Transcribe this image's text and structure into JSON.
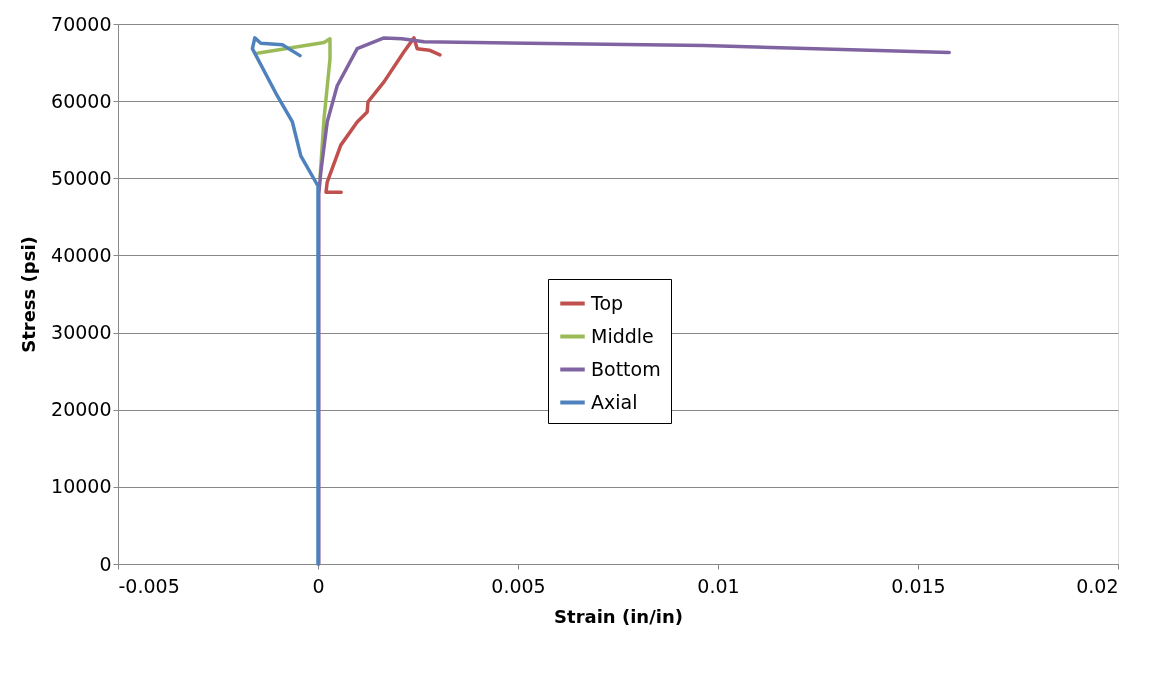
{
  "chart_data": {
    "type": "line",
    "xlabel": "Strain (in/in)",
    "ylabel": "Stress (psi)",
    "xlim": [
      -0.005,
      0.02
    ],
    "xticks": [
      -0.005,
      0,
      0.005,
      0.01,
      0.015,
      0.02
    ],
    "ylim": [
      0,
      70000
    ],
    "yticks": [
      0,
      10000,
      20000,
      30000,
      40000,
      50000,
      60000,
      70000
    ],
    "grid": "y",
    "legend": "center",
    "marker": "none",
    "line_style": "solid",
    "series": [
      {
        "name": "Top",
        "color": "#c0504d",
        "x": [
          0.00058,
          0.0002,
          0.00023,
          0.00057,
          0.00098,
          0.00123,
          0.00125,
          0.00165,
          0.00215,
          0.0024,
          0.00248,
          0.00278,
          0.00305
        ],
        "values": [
          48200,
          48200,
          49500,
          54300,
          57300,
          58600,
          59900,
          62500,
          66400,
          68200,
          66800,
          66600,
          66000
        ]
      },
      {
        "name": "Middle",
        "color": "#9bbb59",
        "x": [
          5e-05,
          0.00015,
          0.0003,
          0.0003,
          0.00015,
          -0.00152
        ],
        "values": [
          50000,
          57700,
          65500,
          68100,
          67600,
          66200
        ]
      },
      {
        "name": "Bottom",
        "color": "#8064a2",
        "x": [
          2e-05,
          2e-05,
          7e-05,
          0.00023,
          0.00048,
          0.00098,
          0.00165,
          0.0021,
          0.00265,
          0.00965,
          0.01578
        ],
        "values": [
          0,
          48000,
          50800,
          57300,
          62000,
          66800,
          68200,
          68100,
          67700,
          67200,
          66300
        ]
      },
      {
        "name": "Axial",
        "color": "#4f81bd",
        "x": [
          0,
          0,
          0,
          -0.00043,
          -0.00064,
          -0.00102,
          -0.00164,
          -0.00158,
          -0.00143,
          -0.00089,
          -0.00045
        ],
        "values": [
          0,
          48000,
          49000,
          52900,
          57300,
          60700,
          66800,
          68200,
          67500,
          67300,
          65900
        ]
      }
    ]
  }
}
